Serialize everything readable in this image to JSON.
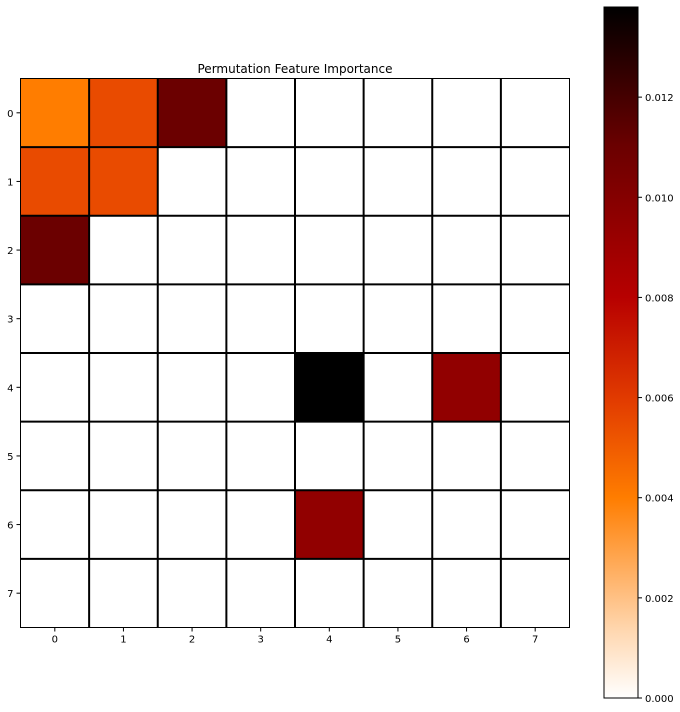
{
  "chart_data": {
    "type": "heatmap",
    "title": "Permutation Feature Importance",
    "xlabel": "",
    "ylabel": "",
    "x_categories": [
      "0",
      "1",
      "2",
      "3",
      "4",
      "5",
      "6",
      "7"
    ],
    "y_categories": [
      "0",
      "1",
      "2",
      "3",
      "4",
      "5",
      "6",
      "7"
    ],
    "values": [
      [
        0.004,
        0.0055,
        0.011,
        0,
        0,
        0,
        0,
        0
      ],
      [
        0.0055,
        0.0055,
        0,
        0,
        0,
        0,
        0,
        0
      ],
      [
        0.011,
        0,
        0,
        0,
        0,
        0,
        0,
        0
      ],
      [
        0,
        0,
        0,
        0,
        0,
        0,
        0,
        0
      ],
      [
        0,
        0,
        0,
        0,
        0.0138,
        0,
        0.0095,
        0
      ],
      [
        0,
        0,
        0,
        0,
        0,
        0,
        0,
        0
      ],
      [
        0,
        0,
        0,
        0,
        0.0095,
        0,
        0,
        0
      ],
      [
        0,
        0,
        0,
        0,
        0,
        0,
        0,
        0
      ]
    ],
    "colormap": "gist_heat_r",
    "color_range": [
      0,
      0.0138
    ],
    "colorbar": {
      "ticks": [
        0.0,
        0.002,
        0.004,
        0.006,
        0.008,
        0.01,
        0.012
      ],
      "tick_labels": [
        "0.000",
        "0.002",
        "0.004",
        "0.006",
        "0.008",
        "0.010",
        "0.012"
      ]
    },
    "grid": true,
    "grid_color": "#000000"
  }
}
